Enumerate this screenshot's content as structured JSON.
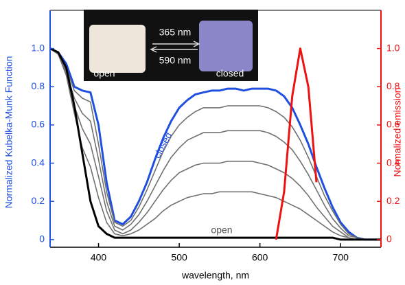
{
  "chart_data": {
    "type": "line",
    "x_label": "wavelength, nm",
    "y_label": "Normalized Kubelka-Munk Function",
    "y2_label": "Normalized emission",
    "inset": {
      "top": "365 nm",
      "bottom": "590 nm",
      "left": "open",
      "right": "closed"
    },
    "curve_labels": [
      "closed",
      "open"
    ],
    "x": [
      340,
      350,
      360,
      370,
      380,
      390,
      400,
      410,
      420,
      430,
      440,
      450,
      460,
      470,
      480,
      490,
      500,
      510,
      520,
      530,
      540,
      550,
      560,
      570,
      580,
      590,
      600,
      610,
      620,
      630,
      640,
      650,
      660,
      670,
      680,
      690,
      700,
      710,
      720,
      730,
      740,
      750
    ],
    "series": [
      {
        "name": "closed",
        "color": "#1f4fe0",
        "values": [
          1.0,
          0.98,
          0.92,
          0.8,
          0.78,
          0.77,
          0.6,
          0.3,
          0.1,
          0.08,
          0.12,
          0.2,
          0.3,
          0.42,
          0.53,
          0.62,
          0.69,
          0.73,
          0.76,
          0.77,
          0.78,
          0.78,
          0.79,
          0.79,
          0.78,
          0.79,
          0.79,
          0.79,
          0.78,
          0.75,
          0.69,
          0.6,
          0.5,
          0.38,
          0.27,
          0.17,
          0.09,
          0.04,
          0.01,
          0,
          0,
          0
        ]
      },
      {
        "color": "#707070",
        "values": [
          1.0,
          0.97,
          0.9,
          0.78,
          0.74,
          0.72,
          0.5,
          0.25,
          0.09,
          0.07,
          0.1,
          0.17,
          0.26,
          0.36,
          0.46,
          0.54,
          0.6,
          0.64,
          0.67,
          0.69,
          0.69,
          0.69,
          0.7,
          0.7,
          0.7,
          0.7,
          0.7,
          0.69,
          0.67,
          0.64,
          0.59,
          0.52,
          0.43,
          0.33,
          0.23,
          0.15,
          0.08,
          0.03,
          0.01,
          0,
          0,
          0
        ]
      },
      {
        "color": "#707070",
        "values": [
          1.0,
          0.97,
          0.88,
          0.74,
          0.66,
          0.62,
          0.42,
          0.2,
          0.07,
          0.05,
          0.08,
          0.13,
          0.2,
          0.28,
          0.36,
          0.43,
          0.48,
          0.52,
          0.54,
          0.56,
          0.56,
          0.56,
          0.57,
          0.57,
          0.57,
          0.57,
          0.57,
          0.56,
          0.54,
          0.51,
          0.47,
          0.41,
          0.34,
          0.26,
          0.18,
          0.11,
          0.06,
          0.02,
          0.01,
          0,
          0,
          0
        ]
      },
      {
        "color": "#707070",
        "values": [
          1.0,
          0.97,
          0.87,
          0.7,
          0.58,
          0.5,
          0.33,
          0.15,
          0.05,
          0.03,
          0.05,
          0.09,
          0.14,
          0.2,
          0.26,
          0.31,
          0.35,
          0.37,
          0.39,
          0.4,
          0.4,
          0.4,
          0.41,
          0.41,
          0.41,
          0.41,
          0.4,
          0.39,
          0.37,
          0.35,
          0.32,
          0.28,
          0.23,
          0.17,
          0.12,
          0.07,
          0.04,
          0.01,
          0,
          0,
          0,
          0
        ]
      },
      {
        "color": "#707070",
        "values": [
          1.0,
          0.97,
          0.86,
          0.66,
          0.48,
          0.38,
          0.22,
          0.09,
          0.03,
          0.02,
          0.03,
          0.05,
          0.08,
          0.11,
          0.15,
          0.18,
          0.2,
          0.22,
          0.23,
          0.24,
          0.24,
          0.25,
          0.25,
          0.25,
          0.25,
          0.25,
          0.24,
          0.23,
          0.22,
          0.2,
          0.18,
          0.16,
          0.13,
          0.1,
          0.07,
          0.04,
          0.02,
          0.01,
          0,
          0,
          0,
          0
        ]
      },
      {
        "name": "open",
        "color": "#000000",
        "values": [
          1.0,
          0.98,
          0.9,
          0.7,
          0.45,
          0.2,
          0.07,
          0.03,
          0.01,
          0.01,
          0.01,
          0.01,
          0.01,
          0.01,
          0.01,
          0.01,
          0.01,
          0.01,
          0.01,
          0.01,
          0.01,
          0.01,
          0.01,
          0.01,
          0.01,
          0.01,
          0.01,
          0.01,
          0.01,
          0.01,
          0.01,
          0.01,
          0.01,
          0.01,
          0.01,
          0.01,
          0,
          0,
          0,
          0,
          0,
          0
        ]
      },
      {
        "color": "#ee1111",
        "axis": "y2",
        "values": [
          null,
          null,
          null,
          null,
          null,
          null,
          null,
          null,
          null,
          null,
          null,
          null,
          null,
          null,
          null,
          null,
          null,
          null,
          null,
          null,
          null,
          null,
          null,
          null,
          null,
          null,
          null,
          null,
          0,
          0.25,
          0.75,
          1.0,
          0.8,
          0.3,
          null,
          null,
          null,
          null,
          null,
          null,
          null,
          null
        ]
      }
    ],
    "xlim": [
      340,
      750
    ],
    "xticks": [
      400,
      500,
      600,
      700
    ],
    "ylim": [
      -0.04,
      1.2
    ],
    "yticks": [
      0,
      0.2,
      0.4,
      0.6,
      0.8,
      {
        "value": 1,
        "label": "1.0"
      }
    ],
    "y2lim": [
      -0.04,
      1.2
    ],
    "y2ticks": [
      0,
      0.2,
      0.4,
      0.6,
      0.8,
      {
        "value": 1,
        "label": "1.0"
      }
    ],
    "y_color": "#1f4fe0",
    "y2_color": "#ee1111"
  }
}
